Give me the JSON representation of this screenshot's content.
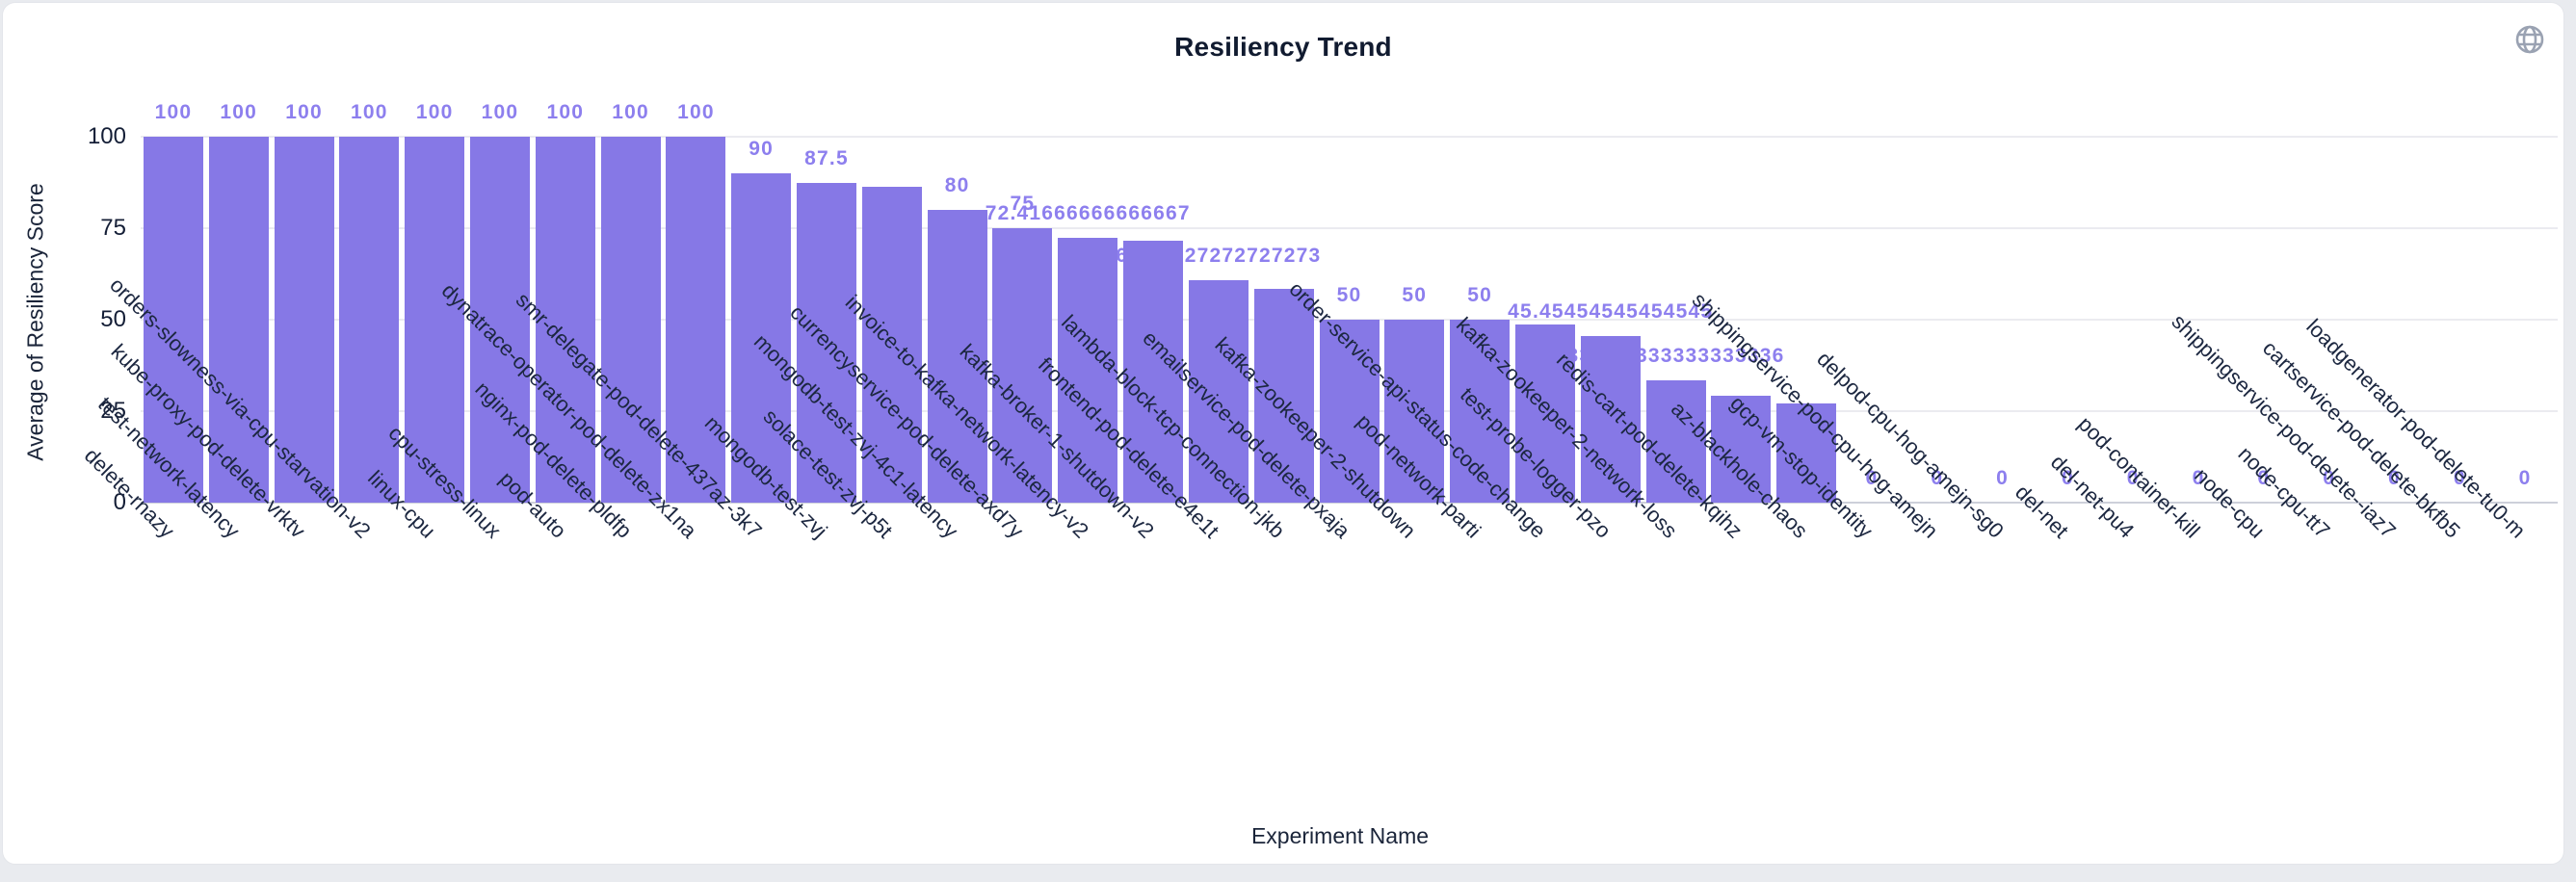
{
  "card": {
    "icons": {
      "top_right": "globe-icon"
    }
  },
  "chart_data": {
    "type": "bar",
    "title": "Resiliency Trend",
    "xlabel": "Experiment Name",
    "ylabel": "Average of Resiliency Score",
    "ylim": [
      0,
      100
    ],
    "yticks": [
      0,
      25,
      50,
      75,
      100
    ],
    "grid": true,
    "legend_position": "none",
    "bar_color": "#8678e6",
    "value_label_color": "#8d7fee",
    "categories": [
      "delete-rnazy",
      "test-network-latency",
      "kube-proxy-pod-delete-vrktv",
      "orders-slowness-via-cpu-starvation-v2",
      "linux-cpu",
      "cpu-stress-linux",
      "pod-auto",
      "nginx-pod-delete-pldfp",
      "dynatrace-operator-pod-delete-zx1na",
      "smr-delegate-pod-delete-437az-3k7",
      "mongodb-test-zvj",
      "solace-test-zvj-p5t",
      "mongodb-test-zvj-4c1-latency",
      "currencyservice-pod-delete-axd7y",
      "invoice-to-kafka-network-latency-v2",
      "kafka-broker-1-shutdown-v2",
      "frontend-pod-delete-e4e1t",
      "lambda-block-tcp-connection-jkb",
      "emailservice-pod-delete-pxaja",
      "kafka-zookeeper-2-shutdown",
      "pod-network-parti",
      "order-service-api-status-code-change",
      "test-probe-logger-pzo",
      "kafka-zookeeper-2-network-loss",
      "redis-cart-pod-delete-kqihz",
      "az-blackhole-chaos",
      "gcp-vm-stop-identity",
      "shippingservice-pod-cpu-hog-amejn",
      "delpod-cpu-hog-amejn-sg0",
      "del-net",
      "del-net-pu4",
      "pod-container-kill",
      "node-cpu",
      "node-cpu-tt7",
      "shippingservice-pod-delete--iaz7",
      "cartservice-pod-delete-bkfb5",
      "loadgenerator-pod-delete-tu0-m"
    ],
    "values": [
      100,
      100,
      100,
      100,
      100,
      100,
      100,
      100,
      100,
      90,
      87.5,
      86.36363636363636,
      80,
      75,
      72.41666666666667,
      71.66666666666667,
      60.72727272727273,
      58.333333333333336,
      50,
      50,
      50,
      48.57142857142857,
      45.45454545454545,
      33.333333333333336,
      29.166666666666668,
      27,
      0,
      0,
      0,
      0,
      0,
      0,
      0,
      0,
      0,
      0,
      0
    ],
    "bar_labels": [
      "100",
      "100",
      "100",
      "100",
      "100",
      "100",
      "100",
      "100",
      "100",
      "90",
      "87.5",
      "",
      "80",
      "75",
      "72.41666666666667",
      "",
      "60.72727272727273",
      "",
      "50",
      "50",
      "50",
      "",
      "45.45454545454545",
      "33.333333333333336",
      "",
      "",
      "0",
      "0",
      "0",
      "0",
      "0",
      "0",
      "0",
      "0",
      "0",
      "0",
      "0"
    ]
  }
}
